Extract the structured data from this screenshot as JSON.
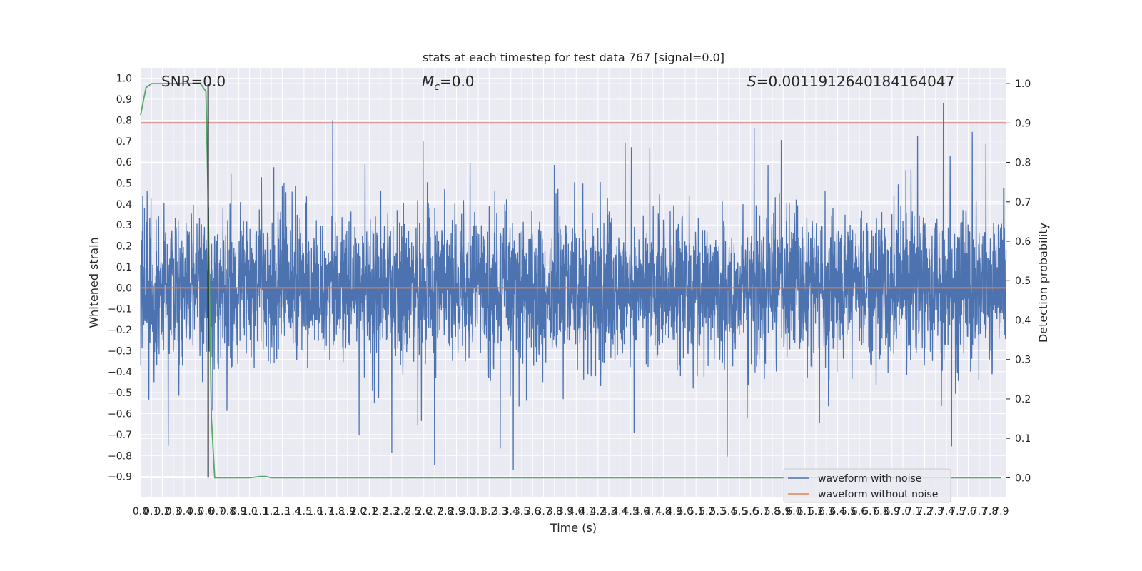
{
  "chart_data": {
    "type": "line",
    "title": "stats at each timestep for test data 767 [signal=0.0]",
    "xlabel": "Time (s)",
    "ylabel": "Whitened strain",
    "y2label": "Detection probability",
    "xlim": [
      0.0,
      7.95
    ],
    "ylim": [
      -1.0,
      1.05
    ],
    "y2lim": [
      -0.05,
      1.04
    ],
    "x_ticks": [
      0.0,
      0.1,
      0.2,
      0.3,
      0.4,
      0.5,
      0.6,
      0.7,
      0.8,
      0.9,
      1.0,
      1.1,
      1.2,
      1.3,
      1.4,
      1.5,
      1.6,
      1.7,
      1.8,
      1.9,
      2.0,
      2.1,
      2.2,
      2.3,
      2.4,
      2.5,
      2.6,
      2.7,
      2.8,
      2.9,
      3.0,
      3.1,
      3.2,
      3.3,
      3.4,
      3.5,
      3.6,
      3.7,
      3.8,
      3.9,
      4.0,
      4.1,
      4.2,
      4.3,
      4.4,
      4.5,
      4.6,
      4.7,
      4.8,
      4.9,
      5.0,
      5.1,
      5.2,
      5.3,
      5.4,
      5.5,
      5.6,
      5.7,
      5.8,
      5.9,
      6.0,
      6.1,
      6.2,
      6.3,
      6.4,
      6.5,
      6.6,
      6.7,
      6.8,
      6.9,
      7.0,
      7.1,
      7.2,
      7.3,
      7.4,
      7.5,
      7.6,
      7.7,
      7.8,
      7.9
    ],
    "y_ticks": [
      1.0,
      0.9,
      0.8,
      0.7,
      0.6,
      0.5,
      0.4,
      0.3,
      0.2,
      0.1,
      0.0,
      -0.1,
      -0.2,
      -0.3,
      -0.4,
      -0.5,
      -0.6,
      -0.7,
      -0.8,
      -0.9
    ],
    "y2_ticks": [
      1.0,
      0.9,
      0.8,
      0.7,
      0.6,
      0.5,
      0.4,
      0.3,
      0.2,
      0.1,
      0.0
    ],
    "grid": true,
    "legend_position": "lower-right",
    "annotations": {
      "snr": "SNR=0.0",
      "mc_symbol": "M",
      "mc_sub": "c",
      "mc_value": "=0.0",
      "s_symbol": "S",
      "s_value": "=0.0011912640184164047"
    },
    "series": [
      {
        "name": "waveform with noise",
        "color": "#4c72b0",
        "axis": "left",
        "kind": "noise",
        "sample_rate": 512,
        "typical_range": [
          -0.45,
          0.42
        ],
        "approx_peak_positive": 1.0,
        "approx_peak_negative": -0.88
      },
      {
        "name": "waveform without noise",
        "color": "#dd8452",
        "axis": "left",
        "kind": "constant",
        "value": 0.0
      },
      {
        "color": "#55a868",
        "axis": "right",
        "x": [
          0.0,
          0.05,
          0.1,
          0.15,
          0.2,
          0.3,
          0.4,
          0.5,
          0.55,
          0.6,
          0.62,
          0.65,
          0.68,
          0.7,
          0.8,
          0.9,
          1.0,
          1.1,
          1.15,
          1.2,
          2.0,
          3.0,
          4.0,
          5.0,
          5.5,
          6.0,
          7.0,
          7.9
        ],
        "values": [
          0.92,
          0.99,
          1.0,
          1.0,
          1.0,
          1.0,
          1.0,
          1.0,
          1.0,
          0.98,
          0.7,
          0.15,
          0.0,
          0.0,
          0.0,
          0.0,
          0.0,
          0.003,
          0.003,
          0.0,
          0.0,
          0.0,
          0.0,
          0.0,
          0.0,
          0.0,
          0.0,
          0.0
        ]
      },
      {
        "color": "#c44e52",
        "axis": "right",
        "kind": "threshold",
        "value": 0.9
      },
      {
        "color": "#000000",
        "axis": "right",
        "kind": "vertical",
        "x": 0.62,
        "ymin": 0.0,
        "ymax": 1.0
      }
    ]
  }
}
